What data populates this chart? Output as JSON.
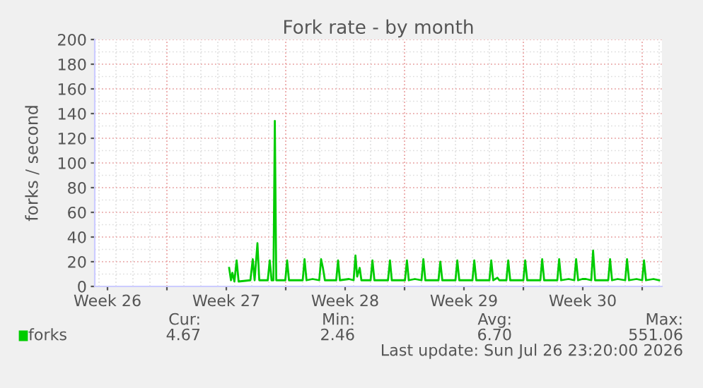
{
  "chart_data": {
    "type": "line",
    "title": "Fork rate - by month",
    "ylabel": "forks / second",
    "xlim": [
      "2026-06-24T18:00",
      "2026-07-28T04:00"
    ],
    "ylim": [
      0,
      200
    ],
    "yticks": [
      0,
      20,
      40,
      60,
      80,
      100,
      120,
      140,
      160,
      180,
      200
    ],
    "xticks": [
      {
        "value": "2026-06-25T12:00",
        "label": "Week 26"
      },
      {
        "value": "2026-06-29",
        "label": null
      },
      {
        "value": "2026-07-02T12:00",
        "label": "Week 27"
      },
      {
        "value": "2026-07-06",
        "label": null
      },
      {
        "value": "2026-07-09T12:00",
        "label": "Week 28"
      },
      {
        "value": "2026-07-13",
        "label": null
      },
      {
        "value": "2026-07-16T12:00",
        "label": "Week 29"
      },
      {
        "value": "2026-07-20",
        "label": null
      },
      {
        "value": "2026-07-23T12:00",
        "label": "Week 30"
      },
      {
        "value": "2026-07-27",
        "label": null
      }
    ],
    "grid": true,
    "legend": "bottom left",
    "marker": "none",
    "line_style": "solid",
    "series": [
      {
        "name": "forks",
        "color": "#00cc00",
        "x": [
          "2026-07-02T16:00",
          "2026-07-02T18:36",
          "2026-07-02T20:36",
          "2026-07-02T23:24",
          "2026-07-03T02:36",
          "2026-07-03T05:24",
          "2026-07-03T22:00",
          "2026-07-04T01:24",
          "2026-07-04T04:00",
          "2026-07-04T08:00",
          "2026-07-04T10:36",
          "2026-07-04T22:36",
          "2026-07-05T01:24",
          "2026-07-05T04:00",
          "2026-07-05T06:36",
          "2026-07-05T08:36",
          "2026-07-05T10:36",
          "2026-07-05T23:24",
          "2026-07-06T02:00",
          "2026-07-06T04:36",
          "2026-07-07T00:00",
          "2026-07-07T02:36",
          "2026-07-07T05:24",
          "2026-07-07T14:00",
          "2026-07-07T23:24",
          "2026-07-08T02:00",
          "2026-07-08T04:36",
          "2026-07-08T07:24",
          "2026-07-08T23:24",
          "2026-07-09T02:00",
          "2026-07-09T04:36",
          "2026-07-09T17:24",
          "2026-07-10T00:00",
          "2026-07-10T02:36",
          "2026-07-10T05:00",
          "2026-07-10T08:36",
          "2026-07-10T11:00",
          "2026-07-11T00:00",
          "2026-07-11T02:36",
          "2026-07-11T05:24",
          "2026-07-12T00:36",
          "2026-07-12T03:24",
          "2026-07-12T06:00",
          "2026-07-13T00:36",
          "2026-07-13T03:24",
          "2026-07-13T06:00",
          "2026-07-13T14:36",
          "2026-07-14T00:00",
          "2026-07-14T02:36",
          "2026-07-14T05:24",
          "2026-07-15T00:00",
          "2026-07-15T02:36",
          "2026-07-15T05:24",
          "2026-07-16T00:00",
          "2026-07-16T02:36",
          "2026-07-16T05:24",
          "2026-07-17T00:00",
          "2026-07-17T02:36",
          "2026-07-17T05:24",
          "2026-07-18T00:00",
          "2026-07-18T02:36",
          "2026-07-18T05:24",
          "2026-07-18T11:24",
          "2026-07-18T14:00",
          "2026-07-19T00:00",
          "2026-07-19T02:36",
          "2026-07-19T05:24",
          "2026-07-20T00:00",
          "2026-07-20T02:36",
          "2026-07-20T05:24",
          "2026-07-21T00:00",
          "2026-07-21T02:36",
          "2026-07-21T05:24",
          "2026-07-22T00:00",
          "2026-07-22T02:36",
          "2026-07-22T05:24",
          "2026-07-22T16:00",
          "2026-07-23T00:00",
          "2026-07-23T02:36",
          "2026-07-23T05:24",
          "2026-07-23T11:24",
          "2026-07-23T16:36",
          "2026-07-24T00:00",
          "2026-07-24T02:36",
          "2026-07-24T05:24",
          "2026-07-25T00:00",
          "2026-07-25T02:36",
          "2026-07-25T05:24",
          "2026-07-25T13:24",
          "2026-07-26T00:00",
          "2026-07-26T02:36",
          "2026-07-26T05:24",
          "2026-07-26T16:00",
          "2026-07-27T00:00",
          "2026-07-27T02:36",
          "2026-07-27T05:24",
          "2026-07-27T16:00",
          "2026-07-28T00:00"
        ],
        "values": [
          15,
          5,
          11,
          4,
          21,
          4,
          5,
          22,
          5,
          35,
          5,
          5,
          21,
          5,
          5,
          134,
          5,
          5,
          21,
          5,
          5,
          22,
          5,
          6,
          5,
          22,
          15,
          5,
          5,
          21,
          5,
          6,
          5,
          25,
          8,
          15,
          5,
          5,
          21,
          5,
          5,
          21,
          5,
          5,
          21,
          5,
          6,
          5,
          22,
          5,
          5,
          20,
          5,
          5,
          21,
          5,
          5,
          21,
          5,
          5,
          21,
          5,
          7,
          5,
          5,
          21,
          5,
          5,
          21,
          5,
          5,
          22,
          5,
          5,
          22,
          5,
          6,
          5,
          22,
          5,
          6,
          6,
          5,
          29,
          5,
          5,
          22,
          5,
          6,
          5,
          22,
          5,
          6,
          5,
          21,
          5,
          6,
          5
        ]
      }
    ],
    "annotations": [
      "Cur:",
      "Min:",
      "Avg:",
      "Max:",
      "4.67",
      "2.46",
      "6.70",
      "551.06",
      "Last update: Sun Jul 26 23:20:00 2026"
    ]
  }
}
